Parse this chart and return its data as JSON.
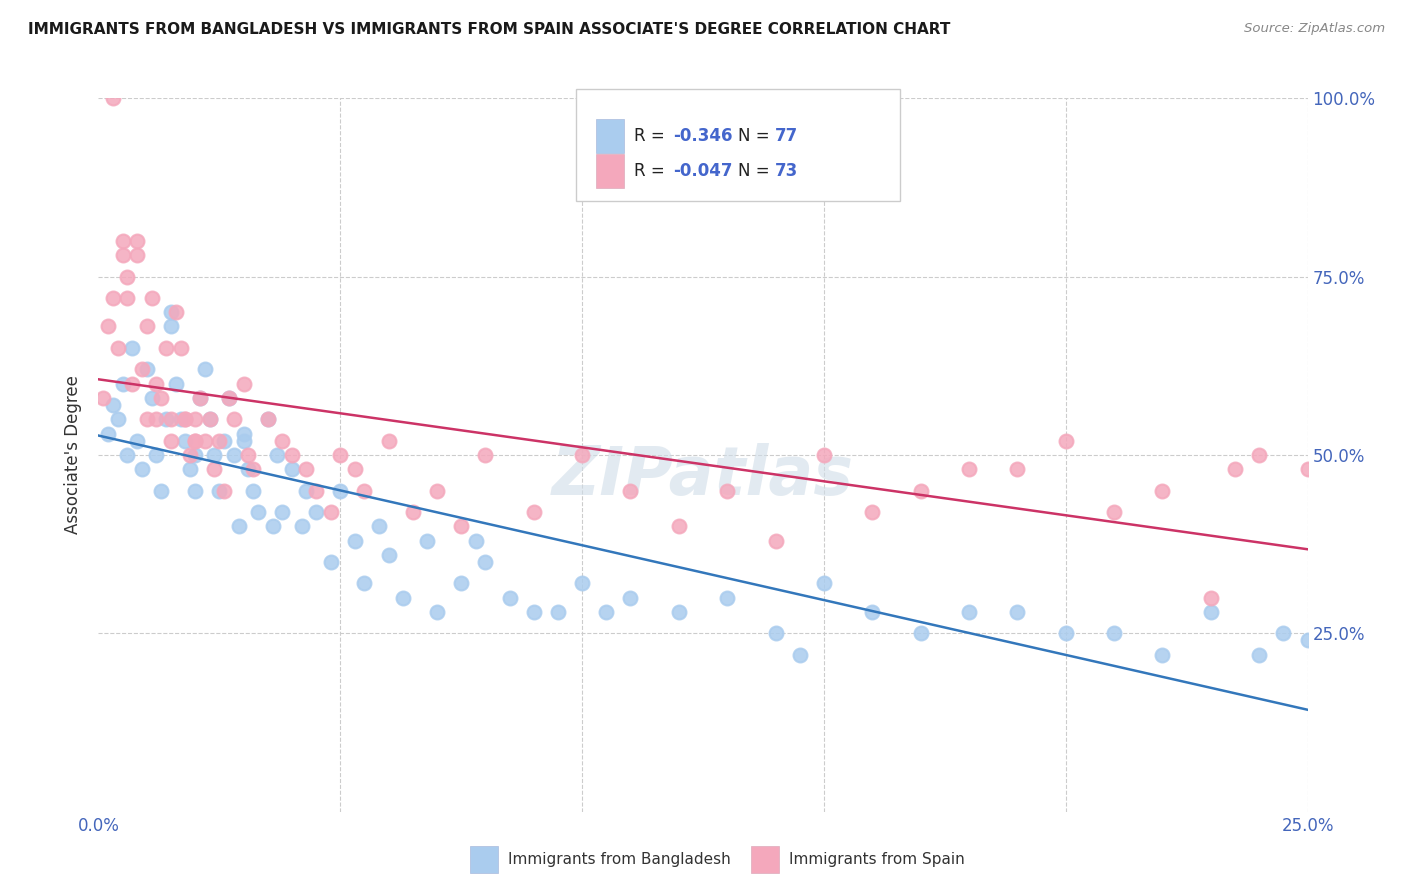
{
  "title": "IMMIGRANTS FROM BANGLADESH VS IMMIGRANTS FROM SPAIN ASSOCIATE'S DEGREE CORRELATION CHART",
  "source": "Source: ZipAtlas.com",
  "ylabel_label": "Associate's Degree",
  "legend_label1_prefix": "R = ",
  "legend_label1_r": "-0.346",
  "legend_label1_n": "  N = ",
  "legend_label1_nval": "77",
  "legend_label2_prefix": "R = ",
  "legend_label2_r": "-0.047",
  "legend_label2_n": "  N = ",
  "legend_label2_nval": "73",
  "legend_series1": "Immigrants from Bangladesh",
  "legend_series2": "Immigrants from Spain",
  "color_bangladesh": "#aaccee",
  "color_spain": "#f4a8bc",
  "line_color_bangladesh": "#3377bb",
  "line_color_spain": "#cc3366",
  "watermark": "ZIPatlas",
  "r_color": "#4466cc",
  "xmin": 0,
  "xmax": 25,
  "ymin": 0,
  "ymax": 100,
  "bd_x": [
    0.2,
    0.3,
    0.4,
    0.5,
    0.6,
    0.7,
    0.8,
    0.9,
    1.0,
    1.1,
    1.2,
    1.3,
    1.4,
    1.5,
    1.5,
    1.6,
    1.7,
    1.8,
    1.9,
    2.0,
    2.0,
    2.1,
    2.2,
    2.3,
    2.4,
    2.5,
    2.6,
    2.7,
    2.8,
    2.9,
    3.0,
    3.1,
    3.2,
    3.3,
    3.5,
    3.6,
    3.7,
    4.0,
    4.2,
    4.5,
    4.8,
    5.0,
    5.3,
    5.5,
    5.8,
    6.0,
    6.3,
    6.8,
    7.0,
    7.5,
    8.0,
    8.5,
    9.0,
    10.0,
    10.5,
    11.0,
    12.0,
    13.0,
    14.0,
    15.0,
    16.0,
    17.0,
    18.0,
    19.0,
    20.0,
    21.0,
    22.0,
    23.0,
    24.0,
    24.5,
    25.0,
    14.5,
    7.8,
    9.5,
    4.3,
    3.8,
    3.0
  ],
  "bd_y": [
    53,
    57,
    55,
    60,
    50,
    65,
    52,
    48,
    62,
    58,
    50,
    45,
    55,
    70,
    68,
    60,
    55,
    52,
    48,
    50,
    45,
    58,
    62,
    55,
    50,
    45,
    52,
    58,
    50,
    40,
    53,
    48,
    45,
    42,
    55,
    40,
    50,
    48,
    40,
    42,
    35,
    45,
    38,
    32,
    40,
    36,
    30,
    38,
    28,
    32,
    35,
    30,
    28,
    32,
    28,
    30,
    28,
    30,
    25,
    32,
    28,
    25,
    28,
    28,
    25,
    25,
    22,
    28,
    22,
    25,
    24,
    22,
    38,
    28,
    45,
    42,
    52
  ],
  "sp_x": [
    0.1,
    0.2,
    0.3,
    0.4,
    0.5,
    0.6,
    0.7,
    0.8,
    0.9,
    1.0,
    1.0,
    1.1,
    1.2,
    1.3,
    1.4,
    1.5,
    1.6,
    1.7,
    1.8,
    1.9,
    2.0,
    2.0,
    2.1,
    2.2,
    2.3,
    2.4,
    2.5,
    2.6,
    2.7,
    2.8,
    3.0,
    3.1,
    3.2,
    3.5,
    3.8,
    4.0,
    4.3,
    4.5,
    4.8,
    5.0,
    5.3,
    5.5,
    6.0,
    6.5,
    7.0,
    7.5,
    8.0,
    9.0,
    10.0,
    11.0,
    12.0,
    13.0,
    14.0,
    15.0,
    16.0,
    17.0,
    18.0,
    19.0,
    20.0,
    21.0,
    22.0,
    23.0,
    23.5,
    24.0,
    25.0,
    1.5,
    2.0,
    0.3,
    0.5,
    0.8,
    0.6,
    1.8,
    1.2
  ],
  "sp_y": [
    58,
    68,
    72,
    65,
    80,
    75,
    60,
    78,
    62,
    68,
    55,
    72,
    60,
    58,
    65,
    52,
    70,
    65,
    55,
    50,
    55,
    52,
    58,
    52,
    55,
    48,
    52,
    45,
    58,
    55,
    60,
    50,
    48,
    55,
    52,
    50,
    48,
    45,
    42,
    50,
    48,
    45,
    52,
    42,
    45,
    40,
    50,
    42,
    50,
    45,
    40,
    45,
    38,
    50,
    42,
    45,
    48,
    48,
    52,
    42,
    45,
    30,
    48,
    50,
    48,
    55,
    52,
    100,
    78,
    80,
    72,
    55,
    55
  ]
}
